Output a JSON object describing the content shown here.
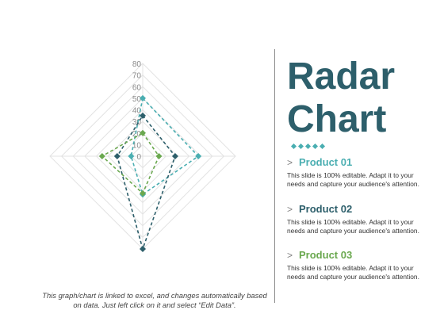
{
  "chart_data": {
    "type": "radar",
    "axes": 4,
    "rmax": 80,
    "ticks": [
      0,
      10,
      20,
      30,
      40,
      50,
      60,
      70,
      80
    ],
    "tick_labels": [
      "0",
      "10",
      "20",
      "30",
      "40",
      "50",
      "60",
      "70",
      "80"
    ],
    "grid": true,
    "series": [
      {
        "name": "Product 01",
        "color": "#4aaeb1",
        "values": [
          50,
          48,
          33,
          10
        ]
      },
      {
        "name": "Product 02",
        "color": "#2d5f6b",
        "values": [
          35,
          28,
          80,
          22
        ]
      },
      {
        "name": "Product 03",
        "color": "#6aa84f",
        "values": [
          20,
          14,
          32,
          35
        ]
      }
    ]
  },
  "title_line1": "Radar",
  "title_line2": "Chart",
  "products": [
    {
      "name": "Product 01",
      "color": "#4aaeb1",
      "desc": "This slide is 100% editable. Adapt it to your needs and capture your audience's attention."
    },
    {
      "name": "Product 02",
      "color": "#2d5f6b",
      "desc": "This slide is 100% editable. Adapt it to your needs and capture your audience's attention."
    },
    {
      "name": "Product 03",
      "color": "#6aa84f",
      "desc": "This slide is 100% editable. Adapt it to your needs and capture your audience's attention."
    }
  ],
  "chevron_glyph": ">",
  "footnote": "This graph/chart is linked to excel, and changes automatically based on data. Just left click on it and select “Edit Data”."
}
